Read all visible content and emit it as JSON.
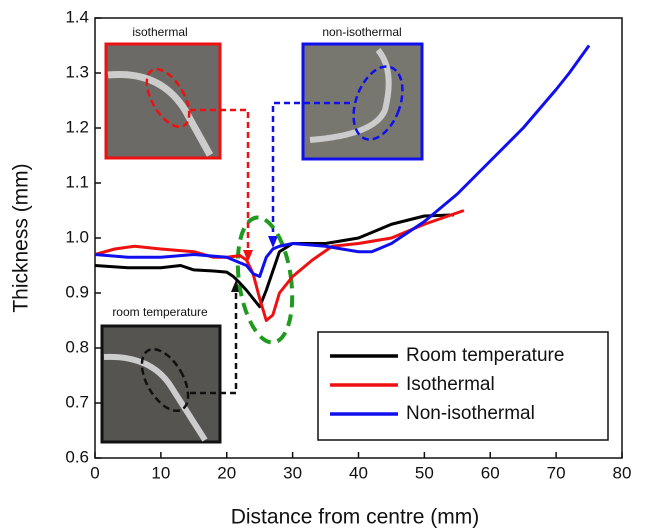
{
  "chart_data": {
    "type": "line",
    "xlabel": "Distance from centre (mm)",
    "ylabel": "Thickness (mm)",
    "xlim": [
      0,
      80
    ],
    "xticks": [
      0,
      10,
      20,
      30,
      40,
      50,
      60,
      70,
      80
    ],
    "ylim": [
      0.6,
      1.4
    ],
    "yticks": [
      0.6,
      0.7,
      0.8,
      0.9,
      {
        "value": 1,
        "label": "1.0"
      },
      1.1,
      1.2,
      1.3,
      1.4
    ],
    "legend": "lower right",
    "annotations": [
      "isothermal",
      "non-isothermal",
      "room temperature"
    ],
    "series": [
      {
        "name": "Room temperature",
        "color": "#000000",
        "x": [
          0,
          5,
          10,
          13,
          15,
          18,
          20,
          21,
          22,
          23,
          24,
          25,
          26,
          27,
          28,
          30,
          35,
          40,
          45,
          50,
          54.5
        ],
        "values": [
          0.95,
          0.946,
          0.946,
          0.95,
          0.942,
          0.94,
          0.938,
          0.93,
          0.918,
          0.905,
          0.89,
          0.875,
          0.905,
          0.94,
          0.975,
          0.99,
          0.99,
          1.0,
          1.025,
          1.04,
          1.042
        ]
      },
      {
        "name": "Isothermal",
        "color": "#ee1111",
        "x": [
          0,
          3,
          6,
          10,
          15,
          18,
          20,
          22,
          23,
          24,
          25,
          26,
          27,
          28,
          30,
          33,
          36,
          40,
          45,
          50,
          56
        ],
        "values": [
          0.97,
          0.98,
          0.985,
          0.98,
          0.975,
          0.965,
          0.965,
          0.968,
          0.96,
          0.935,
          0.89,
          0.85,
          0.86,
          0.9,
          0.93,
          0.96,
          0.985,
          0.99,
          1.0,
          1.025,
          1.05
        ]
      },
      {
        "name": "Non-isothermal",
        "color": "#1010ee",
        "x": [
          0,
          5,
          10,
          15,
          20,
          22,
          23,
          24,
          25,
          26,
          27,
          28,
          30,
          35,
          40,
          42,
          45,
          50,
          55,
          60,
          65,
          70,
          72,
          75
        ],
        "values": [
          0.97,
          0.965,
          0.965,
          0.97,
          0.965,
          0.955,
          0.95,
          0.935,
          0.93,
          0.965,
          0.98,
          0.985,
          0.99,
          0.985,
          0.975,
          0.975,
          0.99,
          1.03,
          1.08,
          1.14,
          1.2,
          1.27,
          1.3,
          1.35
        ]
      }
    ]
  }
}
